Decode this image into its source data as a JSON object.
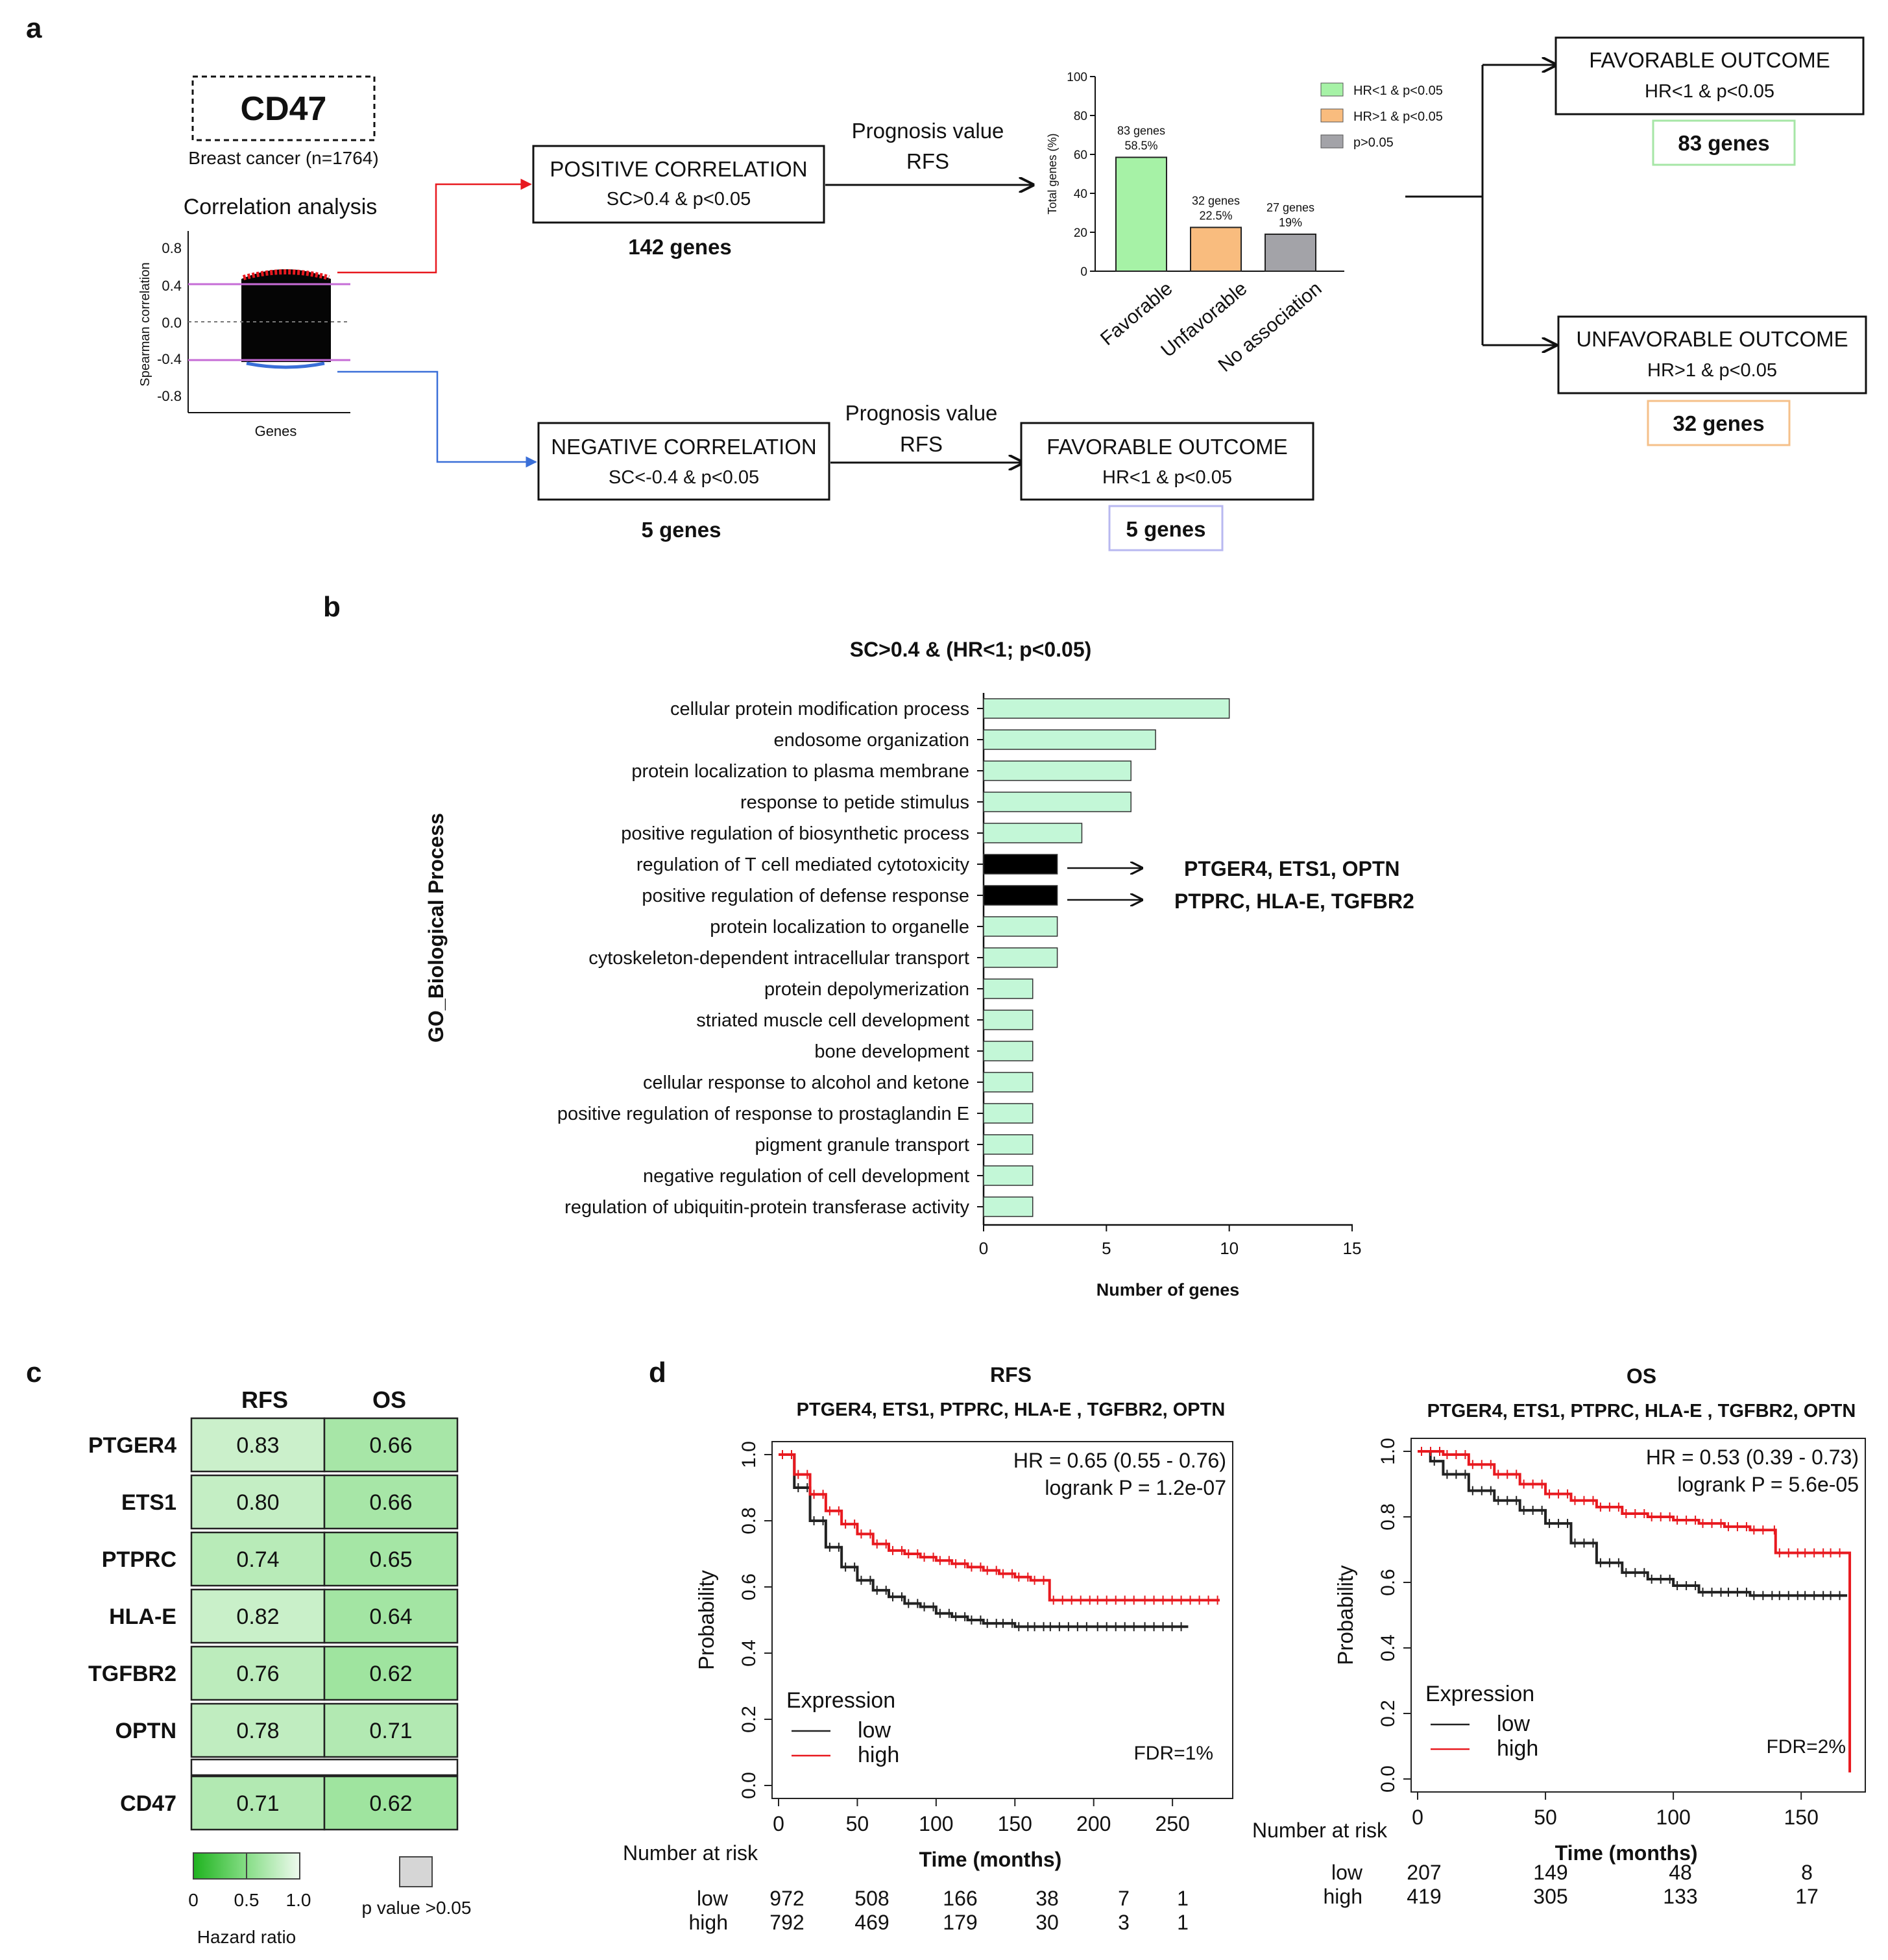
{
  "panel_labels": {
    "a": "a",
    "b": "b",
    "c": "c",
    "d": "d"
  },
  "panel_a": {
    "gene": "CD47",
    "cohort": "Breast cancer (n=1764)",
    "corr_title": "Correlation analysis",
    "corr_ylabel": "Spearman correlation",
    "corr_xlabel": "Genes",
    "corr_ticks": [
      "0.8",
      "0.4",
      "0.0",
      "-0.4",
      "-0.8"
    ],
    "positive": {
      "title": "POSITIVE CORRELATION",
      "criteria": "SC>0.4 & p<0.05",
      "count": "142 genes"
    },
    "negative": {
      "title": "NEGATIVE CORRELATION",
      "criteria": "SC<-0.4 & p<0.05",
      "count": "5 genes"
    },
    "prognosis_label_1": "Prognosis value",
    "prognosis_label_2": "RFS",
    "neg_outcome": {
      "title": "FAVORABLE OUTCOME",
      "criteria": "HR<1 & p<0.05",
      "count": "5 genes"
    },
    "fav_outcome": {
      "title": "FAVORABLE OUTCOME",
      "criteria": "HR<1 & p<0.05",
      "count": "83 genes"
    },
    "unfav_outcome": {
      "title": "UNFAVORABLE OUTCOME",
      "criteria": "HR>1 & p<0.05",
      "count": "32 genes"
    },
    "legend": [
      {
        "label": "HR<1 & p<0.05",
        "color": "#a6f2a6"
      },
      {
        "label": "HR>1 & p<0.05",
        "color": "#f9bc7e"
      },
      {
        "label": "p>0.05",
        "color": "#a3a3a8"
      }
    ]
  },
  "panel_b_title": "SC>0.4 & (HR<1; p<0.05)",
  "panel_b_ylabel": "GO_Biological Process",
  "panel_b_annotations": [
    "PTGER4, ETS1, OPTN",
    "PTPRC, HLA-E, TGFBR2"
  ],
  "panel_c": {
    "columns": [
      "RFS",
      "OS"
    ],
    "rows": [
      {
        "gene": "PTGER4",
        "rfs": "0.83",
        "os": "0.66"
      },
      {
        "gene": "ETS1",
        "rfs": "0.80",
        "os": "0.66"
      },
      {
        "gene": "PTPRC",
        "rfs": "0.74",
        "os": "0.65"
      },
      {
        "gene": "HLA-E",
        "rfs": "0.82",
        "os": "0.64"
      },
      {
        "gene": "TGFBR2",
        "rfs": "0.76",
        "os": "0.62"
      },
      {
        "gene": "OPTN",
        "rfs": "0.78",
        "os": "0.71"
      },
      {
        "gene": "CD47",
        "rfs": "0.71",
        "os": "0.62"
      }
    ],
    "scale_ticks": [
      "0",
      "0.5",
      "1.0"
    ],
    "scale_label": "Hazard ratio",
    "pvalue_label": "p value >0.05"
  },
  "chart_data": [
    {
      "type": "bar",
      "title": "",
      "categories": [
        "Favorable",
        "Unfavorable",
        "No association"
      ],
      "values": [
        58.5,
        22.5,
        19
      ],
      "bar_labels": [
        [
          "83 genes",
          "58.5%"
        ],
        [
          "32 genes",
          "22.5%"
        ],
        [
          "27 genes",
          "19%"
        ]
      ],
      "colors": [
        "#a6f2a6",
        "#f9bc7e",
        "#a3a3a8"
      ],
      "ylabel": "Total genes (%)",
      "ylim": [
        0,
        100
      ],
      "yticks": [
        "0",
        "20",
        "40",
        "60",
        "80",
        "100"
      ]
    },
    {
      "type": "bar",
      "orientation": "horizontal",
      "title": "SC>0.4 & (HR<1; p<0.05)",
      "xlabel": "Number of genes",
      "ylabel": "GO_Biological Process",
      "xlim": [
        0,
        15
      ],
      "xticks": [
        "0",
        "5",
        "10",
        "15"
      ],
      "categories": [
        "cellular protein modification process",
        "endosome organization",
        "protein localization to plasma membrane",
        "response to petide stimulus",
        "positive regulation of biosynthetic process",
        "regulation of T cell mediated cytotoxicity",
        "positive regulation of defense response",
        "protein localization to organelle",
        "cytoskeleton-dependent intracellular transport",
        "protein depolymerization",
        "striated muscle cell development",
        "bone development",
        "cellular response to alcohol and ketone",
        "positive regulation of response to prostaglandin E",
        "pigment granule transport",
        "negative regulation of cell development",
        "regulation of ubiquitin-protein transferase activity"
      ],
      "values": [
        10,
        7,
        6,
        6,
        4,
        3,
        3,
        3,
        3,
        2,
        2,
        2,
        2,
        2,
        2,
        2,
        2
      ],
      "highlight": [
        5,
        6
      ]
    },
    {
      "type": "line",
      "title": "RFS",
      "subtitle": "PTGER4, ETS1, PTPRC, HLA-E , TGFBR2, OPTN",
      "stats": [
        "HR = 0.65 (0.55 - 0.76)",
        "logrank P = 1.2e-07"
      ],
      "fdr": "FDR=1%",
      "xlabel": "Time (months)",
      "ylabel": "Probability",
      "xlim": [
        0,
        280
      ],
      "ylim": [
        0,
        1
      ],
      "xticks": [
        "0",
        "50",
        "100",
        "150",
        "200",
        "250"
      ],
      "yticks": [
        "0.0",
        "0.2",
        "0.4",
        "0.6",
        "0.8",
        "1.0"
      ],
      "legend_title": "Expression",
      "series": [
        {
          "name": "low",
          "color": "#222222",
          "x": [
            0,
            10,
            20,
            30,
            40,
            50,
            60,
            70,
            80,
            90,
            100,
            110,
            120,
            130,
            140,
            150,
            160,
            170,
            200,
            230,
            260
          ],
          "y": [
            1,
            0.9,
            0.8,
            0.72,
            0.66,
            0.62,
            0.59,
            0.57,
            0.55,
            0.54,
            0.52,
            0.51,
            0.5,
            0.49,
            0.49,
            0.48,
            0.48,
            0.48,
            0.48,
            0.48,
            0.48
          ]
        },
        {
          "name": "high",
          "color": "#e8191f",
          "x": [
            0,
            10,
            20,
            30,
            40,
            50,
            60,
            70,
            80,
            90,
            100,
            110,
            120,
            130,
            140,
            150,
            160,
            170,
            172,
            200,
            230,
            280
          ],
          "y": [
            1,
            0.94,
            0.88,
            0.83,
            0.79,
            0.76,
            0.73,
            0.71,
            0.7,
            0.69,
            0.68,
            0.67,
            0.66,
            0.65,
            0.64,
            0.63,
            0.62,
            0.62,
            0.56,
            0.56,
            0.56,
            0.56
          ]
        }
      ],
      "risk_table": {
        "title": "Number at risk",
        "times": [
          "0",
          "50",
          "100",
          "150",
          "200",
          "250"
        ],
        "low": [
          "972",
          "508",
          "166",
          "38",
          "7",
          "1"
        ],
        "high": [
          "792",
          "469",
          "179",
          "30",
          "3",
          "1"
        ]
      }
    },
    {
      "type": "line",
      "title": "OS",
      "subtitle": "PTGER4, ETS1, PTPRC, HLA-E , TGFBR2, OPTN",
      "stats": [
        "HR = 0.53 (0.39 - 0.73)",
        "logrank P = 5.6e-05"
      ],
      "fdr": "FDR=2%",
      "xlabel": "Time (months)",
      "ylabel": "Probability",
      "xlim": [
        0,
        170
      ],
      "ylim": [
        0,
        1
      ],
      "xticks": [
        "0",
        "50",
        "100",
        "150"
      ],
      "yticks": [
        "0.0",
        "0.2",
        "0.4",
        "0.6",
        "0.8",
        "1.0"
      ],
      "legend_title": "Expression",
      "series": [
        {
          "name": "low",
          "color": "#222222",
          "x": [
            0,
            5,
            10,
            20,
            30,
            40,
            50,
            60,
            70,
            80,
            90,
            100,
            110,
            120,
            130,
            140,
            150,
            160,
            168
          ],
          "y": [
            1,
            0.97,
            0.93,
            0.88,
            0.85,
            0.82,
            0.78,
            0.72,
            0.66,
            0.63,
            0.61,
            0.59,
            0.57,
            0.57,
            0.56,
            0.56,
            0.56,
            0.56,
            0.56
          ]
        },
        {
          "name": "high",
          "color": "#e8191f",
          "x": [
            0,
            10,
            20,
            30,
            40,
            50,
            60,
            70,
            80,
            90,
            100,
            110,
            120,
            130,
            138,
            140,
            150,
            160,
            168,
            169
          ],
          "y": [
            1,
            0.99,
            0.96,
            0.93,
            0.9,
            0.87,
            0.85,
            0.83,
            0.81,
            0.8,
            0.79,
            0.78,
            0.77,
            0.76,
            0.76,
            0.69,
            0.69,
            0.69,
            0.69,
            0.02
          ]
        }
      ],
      "risk_table": {
        "title": "Number at risk",
        "times": [
          "0",
          "50",
          "100",
          "150"
        ],
        "low": [
          "207",
          "149",
          "48",
          "8"
        ],
        "high": [
          "419",
          "305",
          "133",
          "17"
        ]
      }
    }
  ]
}
